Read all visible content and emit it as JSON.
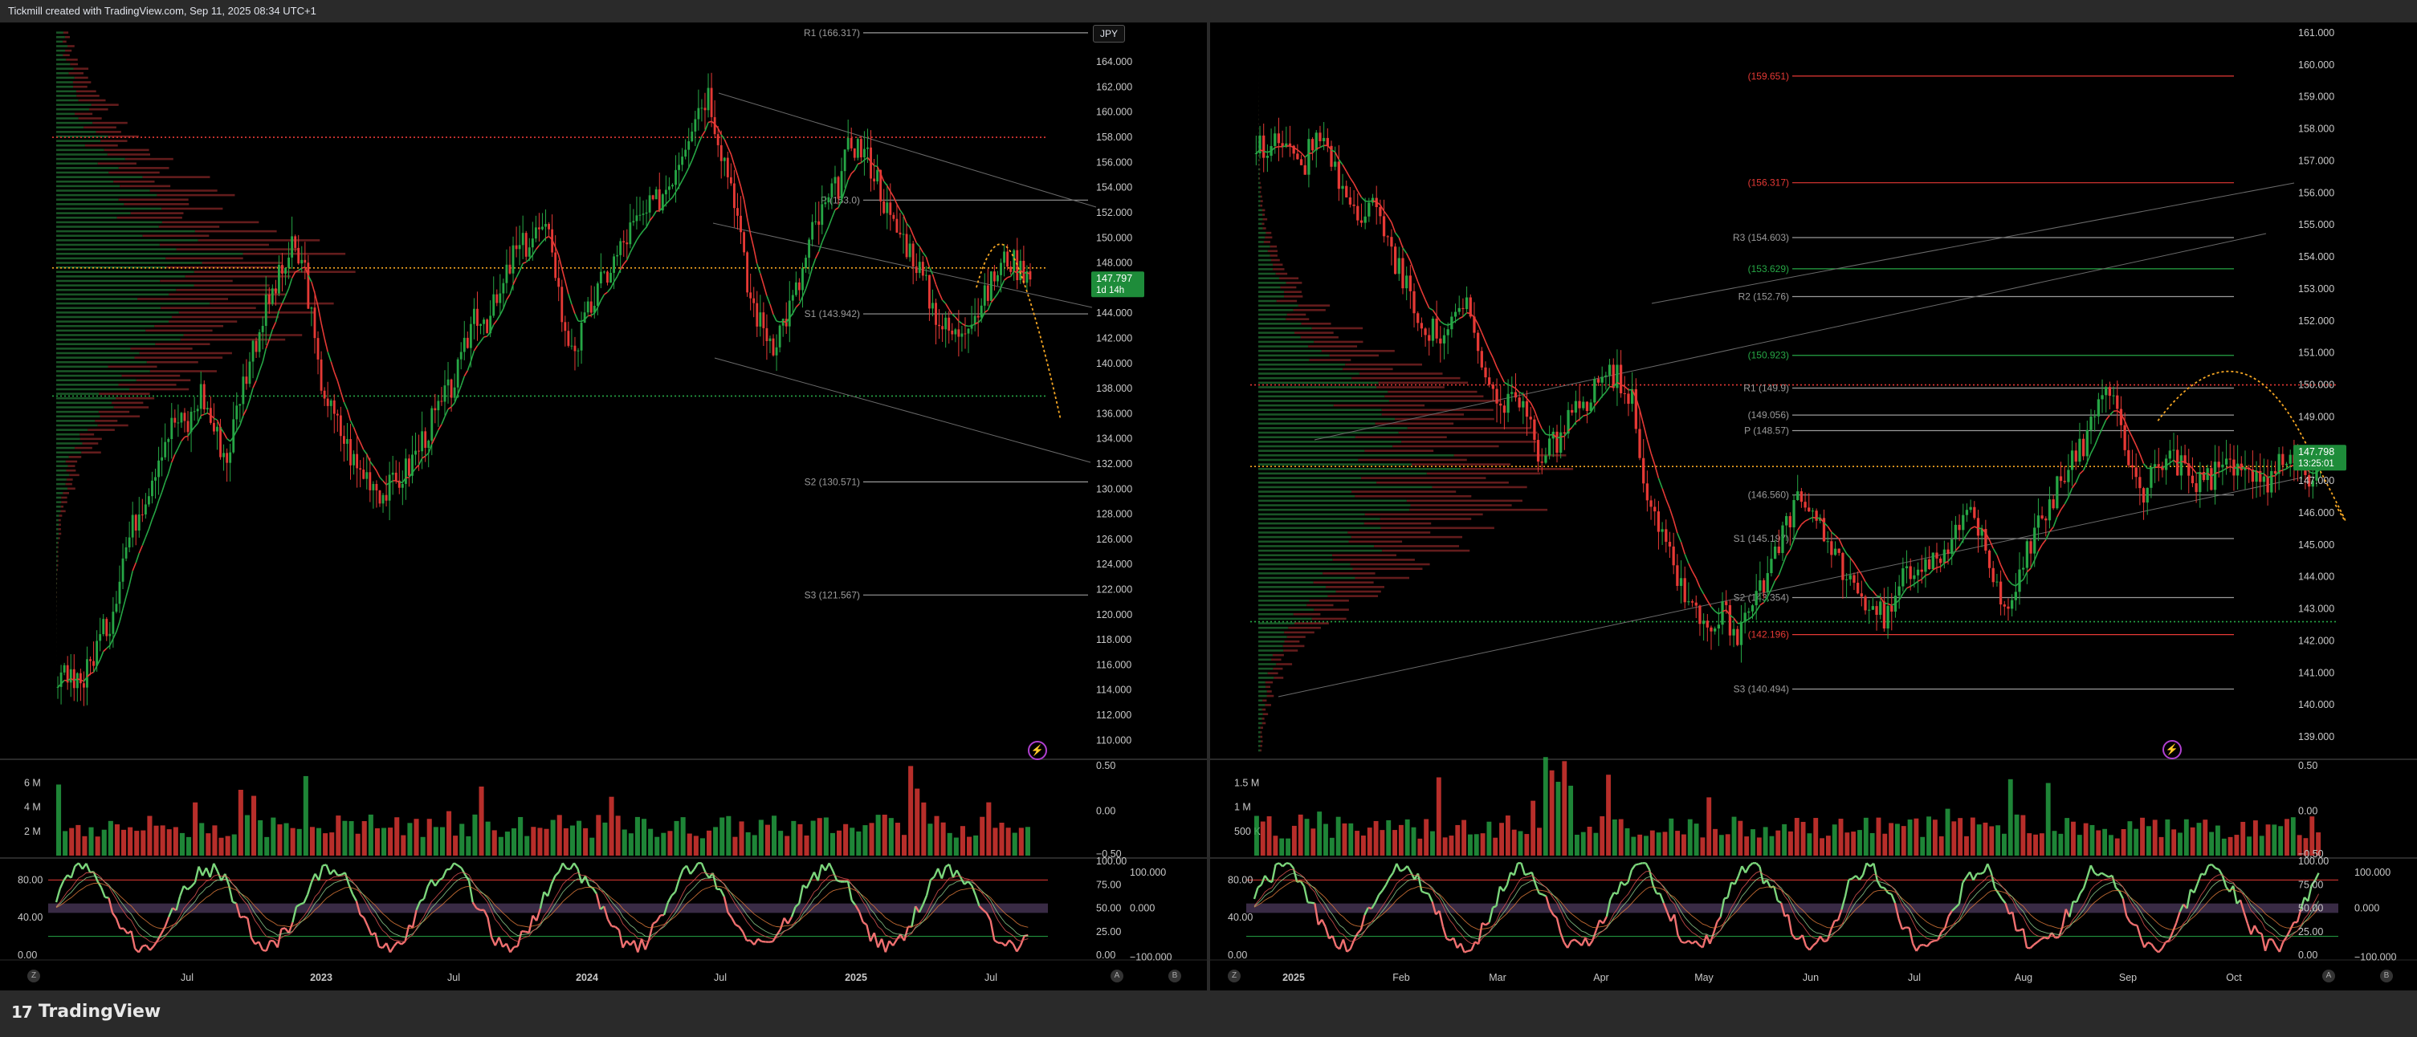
{
  "header": {
    "title": "Tickmill created with TradingView.com, Sep 11, 2025 08:34 UTC+1"
  },
  "footer": {
    "brand_mark": "17",
    "brand_text": "TradingView"
  },
  "colors": {
    "up": "#26a645",
    "down": "#e53935",
    "background": "#000000",
    "orange": "#f5a623"
  },
  "icons": {
    "bolt": "lightning-icon",
    "z": "zoom-icon",
    "a": "auto-scale-icon",
    "b": "log-scale-icon"
  },
  "chart_data": [
    {
      "type": "candlestick",
      "panel": "left",
      "symbol_badge": "JPY",
      "x_tick_labels": [
        "Jul",
        "2023",
        "Jul",
        "2024",
        "Jul",
        "2025",
        "Jul"
      ],
      "y_ticks": [
        "164.000",
        "162.000",
        "160.000",
        "158.000",
        "156.000",
        "154.000",
        "152.000",
        "150.000",
        "148.000",
        "146.000",
        "144.000",
        "142.000",
        "140.000",
        "138.000",
        "136.000",
        "134.000",
        "132.000",
        "130.000",
        "128.000",
        "126.000",
        "124.000",
        "122.000",
        "120.000",
        "118.000",
        "116.000",
        "114.000",
        "112.000",
        "110.000"
      ],
      "ylim": [
        109,
        166.5
      ],
      "price_label": "147.797",
      "price_sublabel": "1d 14h",
      "pivots": [
        {
          "label": "R1 (166.317)",
          "value": 166.317
        },
        {
          "label": "P (153.0)",
          "value": 153.0
        },
        {
          "label": "S1 (143.942)",
          "value": 143.942
        },
        {
          "label": "S2 (130.571)",
          "value": 130.571
        },
        {
          "label": "S3 (121.567)",
          "value": 121.567
        }
      ],
      "h_lines": [
        {
          "value": 158.0,
          "color": "#e53935"
        },
        {
          "value": 147.6,
          "color": "#f5a623"
        },
        {
          "value": 137.4,
          "color": "#26a645"
        }
      ],
      "volume_axis": {
        "labels": [
          "6 M",
          "4 M",
          "2 M"
        ],
        "values": [
          6,
          4,
          2
        ]
      },
      "volume_right_axis": [
        "0.50",
        "0.00",
        "−0.50"
      ],
      "osc_left_axis": [
        "80.00",
        "40.00",
        "0.00"
      ],
      "osc_right_axis_a": [
        "100.00",
        "75.00",
        "50.00",
        "25.00",
        "0.00"
      ],
      "osc_right_axis_b": [
        "100.000",
        "0.000",
        "−100.000"
      ],
      "closes": [
        114.2,
        115.5,
        114.8,
        117.6,
        119.5,
        124.6,
        127.8,
        130.4,
        133.6,
        135.5,
        135.0,
        137.8,
        134.8,
        132.4,
        137.6,
        141.3,
        144.4,
        146.7,
        149.0,
        147.5,
        139.4,
        136.2,
        134.0,
        131.6,
        131.0,
        129.6,
        130.5,
        131.8,
        133.9,
        135.8,
        137.6,
        139.8,
        144.2,
        143.5,
        145.2,
        148.6,
        149.5,
        150.6,
        149.6,
        142.0,
        141.6,
        144.6,
        146.8,
        148.6,
        150.6,
        151.6,
        152.8,
        154.5,
        157.2,
        160.1,
        161.6,
        157.2,
        153.5,
        146.0,
        143.2,
        141.8,
        143.8,
        146.3,
        150.4,
        152.4,
        154.2,
        157.8,
        156.8,
        154.8,
        151.2,
        150.0,
        148.2,
        145.2,
        143.0,
        142.2,
        143.8,
        144.5,
        147.0,
        148.5,
        147.5,
        147.8
      ]
    },
    {
      "type": "candlestick",
      "panel": "right",
      "x_tick_labels": [
        "2025",
        "Feb",
        "Mar",
        "Apr",
        "May",
        "Jun",
        "Jul",
        "Aug",
        "Sep",
        "Oct"
      ],
      "y_ticks": [
        "161.000",
        "160.000",
        "159.000",
        "158.000",
        "157.000",
        "156.000",
        "155.000",
        "154.000",
        "153.000",
        "152.000",
        "151.000",
        "150.000",
        "149.000",
        "148.000",
        "147.000",
        "146.000",
        "145.000",
        "144.000",
        "143.000",
        "142.000",
        "141.000",
        "140.000",
        "139.000"
      ],
      "ylim": [
        138.5,
        161.2
      ],
      "price_label": "147.798",
      "price_sublabel": "13:25:01",
      "pivots": [
        {
          "label": "(159.651)",
          "value": 159.651,
          "color": "#e53935"
        },
        {
          "label": "(156.317)",
          "value": 156.317,
          "color": "#e53935"
        },
        {
          "label": "R3 (154.603)",
          "value": 154.603
        },
        {
          "label": "(153.629)",
          "value": 153.629,
          "color": "#26a645"
        },
        {
          "label": "R2 (152.76)",
          "value": 152.76
        },
        {
          "label": "(150.923)",
          "value": 150.923,
          "color": "#26a645"
        },
        {
          "label": "R1 (149.9)",
          "value": 149.9
        },
        {
          "label": "(149.056)",
          "value": 149.056
        },
        {
          "label": "P (148.57)",
          "value": 148.57
        },
        {
          "label": "(146.560)",
          "value": 146.56
        },
        {
          "label": "S1 (145.197)",
          "value": 145.197
        },
        {
          "label": "S2 (143.354)",
          "value": 143.354
        },
        {
          "label": "(142.196)",
          "value": 142.196,
          "color": "#e53935"
        },
        {
          "label": "S3 (140.494)",
          "value": 140.494
        }
      ],
      "h_lines": [
        {
          "value": 150.0,
          "color": "#e53935"
        },
        {
          "value": 147.45,
          "color": "#f5a623"
        },
        {
          "value": 142.6,
          "color": "#26a645"
        }
      ],
      "volume_axis": {
        "labels": [
          "1.5 M",
          "1 M",
          "500 K"
        ],
        "values": [
          1.5,
          1,
          0.5
        ]
      },
      "volume_right_axis": [
        "0.50",
        "0.00",
        "−0.50"
      ],
      "osc_left_axis": [
        "80.00",
        "40.00",
        "0.00"
      ],
      "osc_right_axis_a": [
        "100.00",
        "75.00",
        "50.00",
        "25.00",
        "0.00"
      ],
      "osc_right_axis_b": [
        "100.000",
        "0.000",
        "−100.000"
      ],
      "closes": [
        157.3,
        157.6,
        157.9,
        156.5,
        158.0,
        157.2,
        155.6,
        155.2,
        155.8,
        154.1,
        153.0,
        152.0,
        151.5,
        151.8,
        152.5,
        150.5,
        149.2,
        149.8,
        148.8,
        147.8,
        148.3,
        149.0,
        149.6,
        150.6,
        150.2,
        149.6,
        146.5,
        145.6,
        144.0,
        143.2,
        142.4,
        142.9,
        142.2,
        143.5,
        144.1,
        145.2,
        146.5,
        145.8,
        145.0,
        144.3,
        143.6,
        142.8,
        142.8,
        143.9,
        144.5,
        144.6,
        145.1,
        146.0,
        145.5,
        143.8,
        143.3,
        144.5,
        145.5,
        146.5,
        147.5,
        148.2,
        149.2,
        150.0,
        147.6,
        146.6,
        147.6,
        147.8,
        147.0,
        146.9,
        147.3,
        147.6,
        147.2,
        146.8,
        147.5,
        147.9,
        147.2,
        147.8
      ]
    }
  ]
}
